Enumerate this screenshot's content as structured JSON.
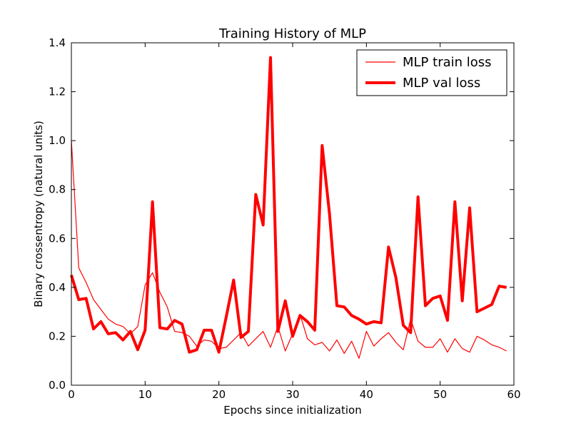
{
  "chart_data": {
    "type": "line",
    "title": "Training History of MLP",
    "xlabel": "Epochs since initialization",
    "ylabel": "Binary crossentropy (natural units)",
    "xlim": [
      0,
      60
    ],
    "ylim": [
      0,
      1.4
    ],
    "x_ticks": [
      0,
      10,
      20,
      30,
      40,
      50,
      60
    ],
    "x_tick_labels": [
      "0",
      "10",
      "20",
      "30",
      "40",
      "50",
      "60"
    ],
    "y_ticks": [
      0,
      0.2,
      0.4,
      0.6,
      0.8,
      1.0,
      1.2,
      1.4
    ],
    "y_tick_labels": [
      "0.0",
      "0.2",
      "0.4",
      "0.6",
      "0.8",
      "1.0",
      "1.2",
      "1.4"
    ],
    "grid": false,
    "legend_position": "upper right",
    "x": [
      0,
      1,
      2,
      3,
      4,
      5,
      6,
      7,
      8,
      9,
      10,
      11,
      12,
      13,
      14,
      15,
      16,
      17,
      18,
      19,
      20,
      21,
      22,
      23,
      24,
      25,
      26,
      27,
      28,
      29,
      30,
      31,
      32,
      33,
      34,
      35,
      36,
      37,
      38,
      39,
      40,
      41,
      42,
      43,
      44,
      45,
      46,
      47,
      48,
      49,
      50,
      51,
      52,
      53,
      54,
      55,
      56,
      57,
      58,
      59
    ],
    "series": [
      {
        "name": "MLP train loss",
        "color": "#ff0000",
        "style": "thin",
        "values": [
          1.0,
          0.48,
          0.42,
          0.35,
          0.31,
          0.27,
          0.25,
          0.24,
          0.21,
          0.24,
          0.41,
          0.46,
          0.38,
          0.32,
          0.22,
          0.215,
          0.2,
          0.16,
          0.185,
          0.18,
          0.15,
          0.155,
          0.185,
          0.215,
          0.16,
          0.19,
          0.22,
          0.155,
          0.24,
          0.14,
          0.21,
          0.29,
          0.19,
          0.165,
          0.175,
          0.14,
          0.185,
          0.13,
          0.18,
          0.11,
          0.22,
          0.16,
          0.19,
          0.215,
          0.175,
          0.145,
          0.27,
          0.18,
          0.155,
          0.155,
          0.19,
          0.135,
          0.19,
          0.15,
          0.135,
          0.2,
          0.185,
          0.165,
          0.155,
          0.14
        ]
      },
      {
        "name": "MLP val loss",
        "color": "#ff0000",
        "style": "thick",
        "values": [
          0.45,
          0.35,
          0.355,
          0.23,
          0.26,
          0.21,
          0.215,
          0.185,
          0.22,
          0.145,
          0.225,
          0.75,
          0.235,
          0.23,
          0.265,
          0.25,
          0.135,
          0.145,
          0.225,
          0.225,
          0.135,
          0.28,
          0.43,
          0.195,
          0.22,
          0.78,
          0.655,
          1.34,
          0.22,
          0.345,
          0.2,
          0.285,
          0.26,
          0.225,
          0.98,
          0.7,
          0.325,
          0.32,
          0.285,
          0.27,
          0.25,
          0.26,
          0.255,
          0.565,
          0.44,
          0.245,
          0.215,
          0.77,
          0.325,
          0.355,
          0.365,
          0.265,
          0.75,
          0.345,
          0.725,
          0.3,
          0.315,
          0.33,
          0.405,
          0.4
        ]
      }
    ]
  }
}
